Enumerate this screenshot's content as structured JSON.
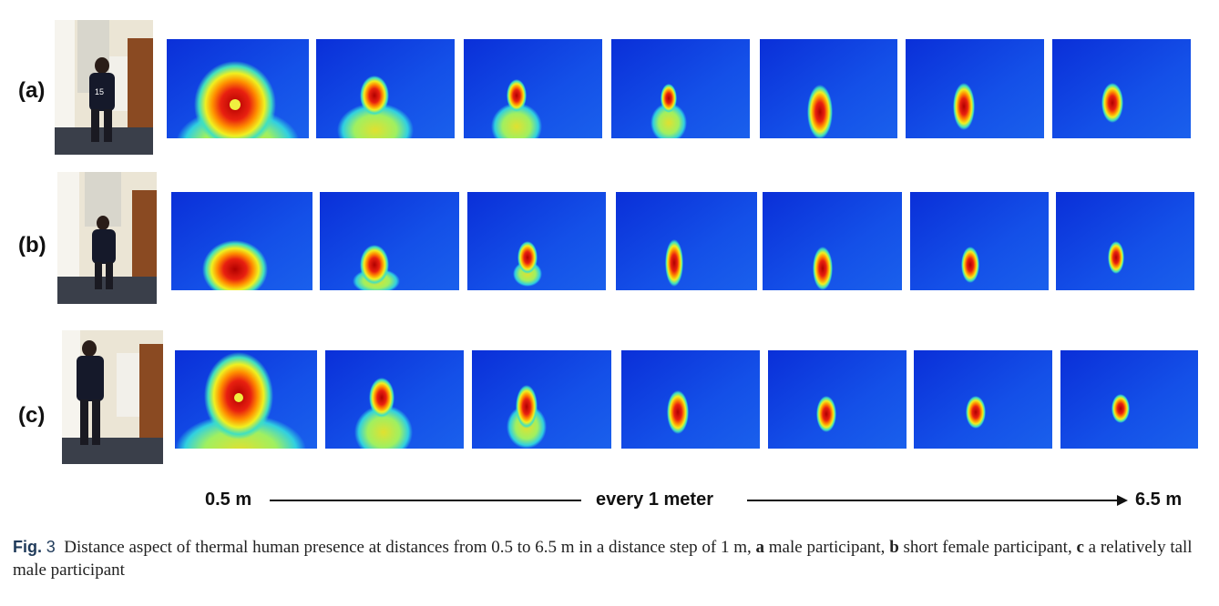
{
  "rows": [
    {
      "label": "(a)",
      "participant": "male participant"
    },
    {
      "label": "(b)",
      "participant": "short female participant"
    },
    {
      "label": "(c)",
      "participant": "a relatively tall male participant"
    }
  ],
  "scale": {
    "start": "0.5 m",
    "middle": "every 1 meter",
    "end": "6.5 m"
  },
  "caption": {
    "fig_label": "Fig.",
    "fig_number": "3",
    "text_main": "Distance aspect of thermal human presence at distances from 0.5 to 6.5 m in a distance step of 1 m,",
    "a_letter": "a",
    "a_text": "male participant,",
    "b_letter": "b",
    "b_text": "short female participant,",
    "c_letter": "c",
    "c_text": "a relatively tall male participant"
  },
  "colors": {
    "thermal_background": "#1040e0",
    "thermal_hot": "#e01010",
    "caption_fig": "#1f3a5a"
  }
}
